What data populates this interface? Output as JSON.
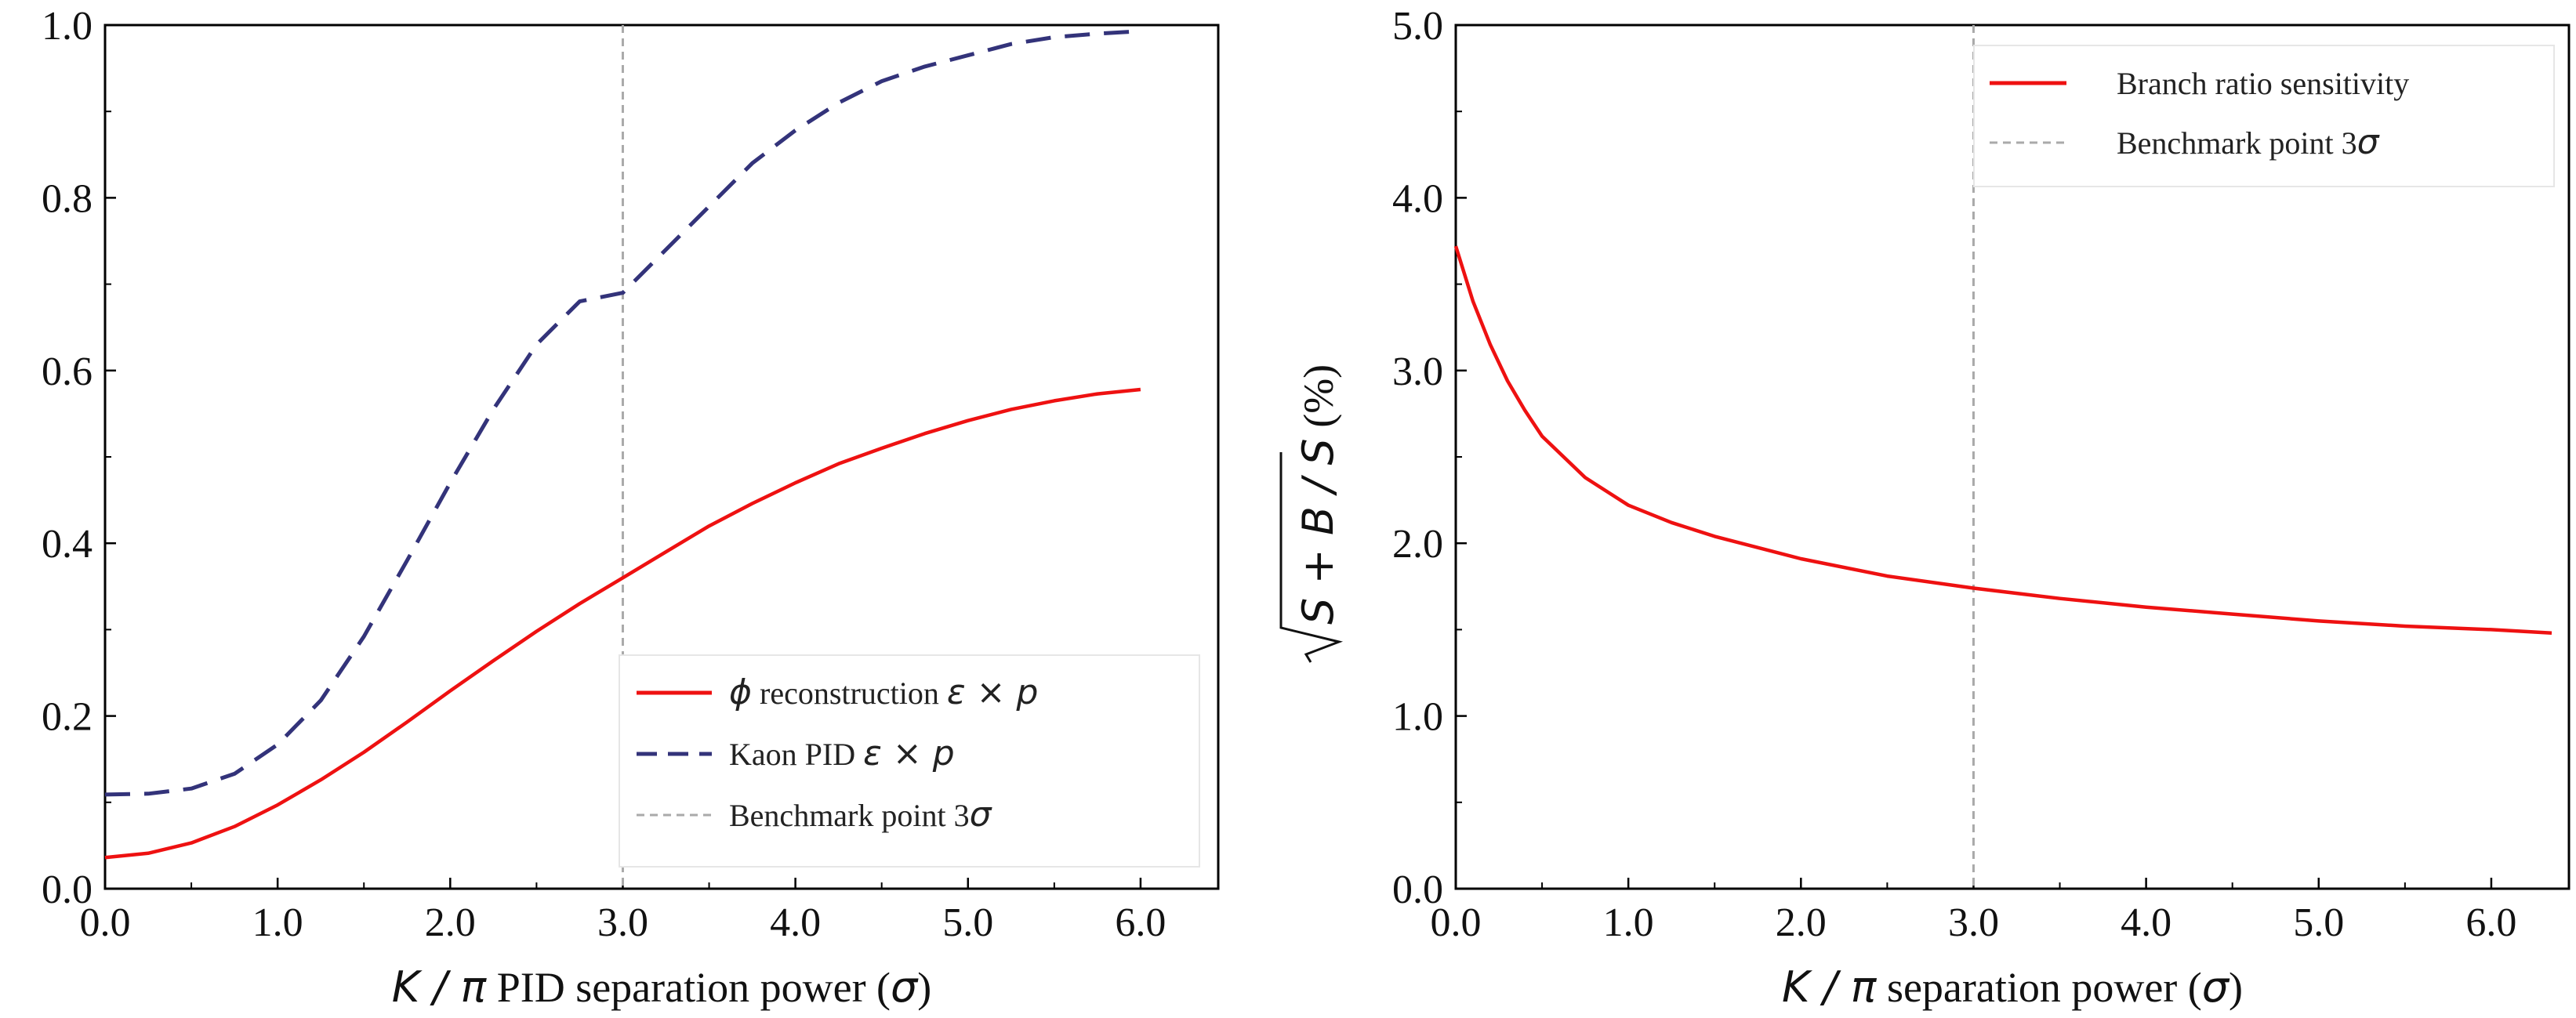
{
  "chart_data": [
    {
      "type": "line",
      "xlabel": "K / π PID separation power (σ)",
      "ylabel": "",
      "xlim": [
        0,
        6.45
      ],
      "ylim": [
        0,
        1.0
      ],
      "xticks": [
        "0.0",
        "1.0",
        "2.0",
        "3.0",
        "4.0",
        "5.0",
        "6.0"
      ],
      "yticks": [
        "0.0",
        "0.2",
        "0.4",
        "0.6",
        "0.8",
        "1.0"
      ],
      "grid": false,
      "legend_position": "lower-right",
      "vline": {
        "x": 3.0,
        "name": "Benchmark point 3σ",
        "color": "#aaaaaa",
        "style": "dashed"
      },
      "series": [
        {
          "name": "ϕ reconstruction ε × p",
          "color": "#ee1111",
          "style": "solid",
          "x": [
            0,
            0.25,
            0.5,
            0.75,
            1.0,
            1.25,
            1.5,
            1.75,
            2.0,
            2.25,
            2.5,
            2.75,
            3.0,
            3.25,
            3.5,
            3.75,
            4.0,
            4.25,
            4.5,
            4.75,
            5.0,
            5.25,
            5.5,
            5.75,
            6.0
          ],
          "y": [
            0.036,
            0.041,
            0.053,
            0.072,
            0.097,
            0.126,
            0.158,
            0.193,
            0.229,
            0.264,
            0.298,
            0.33,
            0.36,
            0.39,
            0.42,
            0.446,
            0.47,
            0.492,
            0.51,
            0.527,
            0.542,
            0.555,
            0.565,
            0.573,
            0.578
          ]
        },
        {
          "name": "Kaon PID ε × p",
          "color": "#33337a",
          "style": "dashed",
          "x": [
            0,
            0.25,
            0.5,
            0.75,
            1.0,
            1.25,
            1.5,
            1.75,
            2.0,
            2.25,
            2.5,
            2.75,
            3.0,
            3.25,
            3.5,
            3.75,
            4.0,
            4.25,
            4.5,
            4.75,
            5.0,
            5.25,
            5.5,
            5.75,
            6.0
          ],
          "y": [
            0.109,
            0.11,
            0.116,
            0.133,
            0.167,
            0.218,
            0.292,
            0.38,
            0.47,
            0.555,
            0.63,
            0.68,
            0.69,
            0.74,
            0.79,
            0.84,
            0.878,
            0.91,
            0.935,
            0.952,
            0.965,
            0.978,
            0.986,
            0.99,
            0.993
          ]
        }
      ]
    },
    {
      "type": "line",
      "xlabel": "K / π separation power (σ)",
      "ylabel": "√S + B / S (%)",
      "xlim": [
        0,
        6.45
      ],
      "ylim": [
        0,
        5.0
      ],
      "xticks": [
        "0.0",
        "1.0",
        "2.0",
        "3.0",
        "4.0",
        "5.0",
        "6.0"
      ],
      "yticks": [
        "0.0",
        "1.0",
        "2.0",
        "3.0",
        "4.0",
        "5.0"
      ],
      "grid": false,
      "legend_position": "upper-right",
      "vline": {
        "x": 3.0,
        "name": "Benchmark point 3σ",
        "color": "#aaaaaa",
        "style": "dashed"
      },
      "series": [
        {
          "name": "Branch ratio sensitivity",
          "color": "#ee1111",
          "style": "solid",
          "x": [
            0,
            0.1,
            0.2,
            0.3,
            0.4,
            0.5,
            0.75,
            1.0,
            1.25,
            1.5,
            2.0,
            2.5,
            3.0,
            3.5,
            4.0,
            4.5,
            5.0,
            5.5,
            6.0,
            6.35
          ],
          "y": [
            3.72,
            3.4,
            3.15,
            2.94,
            2.77,
            2.62,
            2.38,
            2.22,
            2.12,
            2.04,
            1.91,
            1.81,
            1.74,
            1.68,
            1.63,
            1.59,
            1.55,
            1.52,
            1.5,
            1.48
          ]
        }
      ]
    }
  ]
}
